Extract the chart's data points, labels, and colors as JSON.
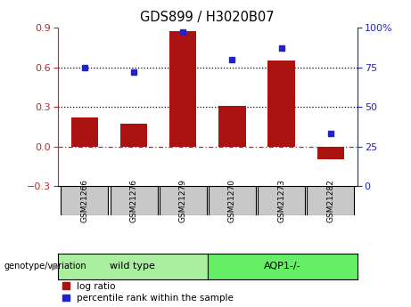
{
  "title": "GDS899 / H3020B07",
  "samples": [
    "GSM21266",
    "GSM21276",
    "GSM21279",
    "GSM21270",
    "GSM21273",
    "GSM21282"
  ],
  "log_ratio": [
    0.22,
    0.17,
    0.875,
    0.305,
    0.65,
    -0.095
  ],
  "percentile_rank": [
    75,
    72,
    97,
    80,
    87,
    33
  ],
  "bar_color": "#AA1111",
  "dot_color": "#2222CC",
  "ylim_left": [
    -0.3,
    0.9
  ],
  "ylim_right": [
    0,
    100
  ],
  "yticks_left": [
    -0.3,
    0.0,
    0.3,
    0.6,
    0.9
  ],
  "yticks_right": [
    0,
    25,
    50,
    75,
    100
  ],
  "hlines": [
    0.3,
    0.6
  ],
  "zero_line_color": "#CC2222",
  "background_color": "#ffffff",
  "sample_box_color": "#C8C8C8",
  "wt_color": "#AAEEA0",
  "aqp_color": "#66EE66",
  "label_log_ratio": "log ratio",
  "label_percentile": "percentile rank within the sample",
  "group_label": "genotype/variation"
}
